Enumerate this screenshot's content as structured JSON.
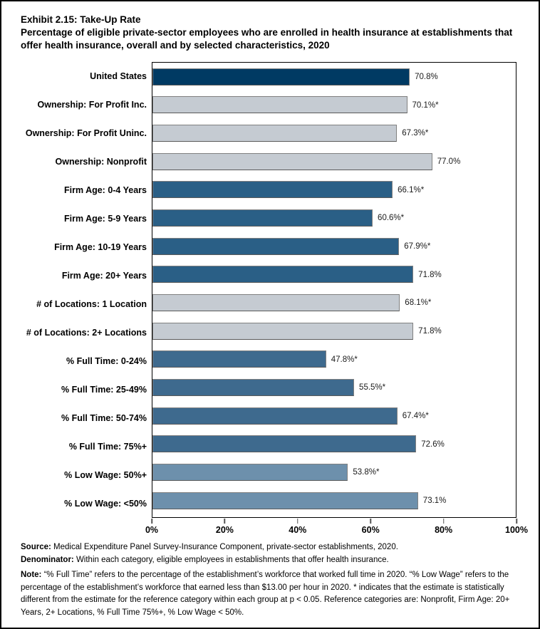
{
  "title": "Exhibit 2.15: Take-Up Rate",
  "subtitle": "Percentage of eligible private-sector employees who are enrolled in health insurance at establishments that offer health insurance, overall and by selected characteristics, 2020",
  "chart_data": {
    "type": "bar",
    "orientation": "horizontal",
    "xlim": [
      0,
      100
    ],
    "x_ticks": [
      "0%",
      "20%",
      "40%",
      "60%",
      "80%",
      "100%"
    ],
    "grid": false,
    "legend": "none",
    "colors": {
      "navy": "#003A63",
      "gray": "#C5CBD2",
      "blue_dark": "#2A5F86",
      "blue_mid": "#3E6A8E",
      "blue_light": "#6D90AC",
      "bar_border": "#808080"
    },
    "bars": [
      {
        "label": "United States",
        "value": 70.8,
        "display": "70.8%",
        "color_key": "navy"
      },
      {
        "label": "Ownership: For Profit Inc.",
        "value": 70.1,
        "display": "70.1%*",
        "color_key": "gray"
      },
      {
        "label": "Ownership: For Profit Uninc.",
        "value": 67.3,
        "display": "67.3%*",
        "color_key": "gray"
      },
      {
        "label": "Ownership: Nonprofit",
        "value": 77.0,
        "display": "77.0%",
        "color_key": "gray"
      },
      {
        "label": "Firm Age: 0-4 Years",
        "value": 66.1,
        "display": "66.1%*",
        "color_key": "blue_dark"
      },
      {
        "label": "Firm Age: 5-9 Years",
        "value": 60.6,
        "display": "60.6%*",
        "color_key": "blue_dark"
      },
      {
        "label": "Firm Age: 10-19 Years",
        "value": 67.9,
        "display": "67.9%*",
        "color_key": "blue_dark"
      },
      {
        "label": "Firm Age: 20+ Years",
        "value": 71.8,
        "display": "71.8%",
        "color_key": "blue_dark"
      },
      {
        "label": "# of Locations: 1 Location",
        "value": 68.1,
        "display": "68.1%*",
        "color_key": "gray"
      },
      {
        "label": "# of Locations: 2+ Locations",
        "value": 71.8,
        "display": "71.8%",
        "color_key": "gray"
      },
      {
        "label": "% Full Time: 0-24%",
        "value": 47.8,
        "display": "47.8%*",
        "color_key": "blue_mid"
      },
      {
        "label": "% Full Time: 25-49%",
        "value": 55.5,
        "display": "55.5%*",
        "color_key": "blue_mid"
      },
      {
        "label": "% Full Time: 50-74%",
        "value": 67.4,
        "display": "67.4%*",
        "color_key": "blue_mid"
      },
      {
        "label": "% Full Time: 75%+",
        "value": 72.6,
        "display": "72.6%",
        "color_key": "blue_mid"
      },
      {
        "label": "% Low Wage: 50%+",
        "value": 53.8,
        "display": "53.8%*",
        "color_key": "blue_light"
      },
      {
        "label": "% Low Wage: <50%",
        "value": 73.1,
        "display": "73.1%",
        "color_key": "blue_light"
      }
    ]
  },
  "footer": {
    "source_label": "Source:",
    "source_text": " Medical Expenditure Panel Survey-Insurance Component, private-sector establishments, 2020.",
    "denominator_label": "Denominator:",
    "denominator_text": " Within each category, eligible employees in establishments that offer health insurance.",
    "note_label": "Note:",
    "note_text": " “% Full Time” refers to the percentage of the establishment’s workforce that worked full time in 2020. “% Low Wage” refers to the percentage of the establishment’s workforce that earned less than $13.00 per hour in 2020. * indicates that the estimate is statistically different from the estimate for the reference category within each group at p < 0.05.  Reference categories are: Nonprofit, Firm Age: 20+ Years, 2+ Locations, % Full Time 75%+, % Low Wage < 50%."
  }
}
